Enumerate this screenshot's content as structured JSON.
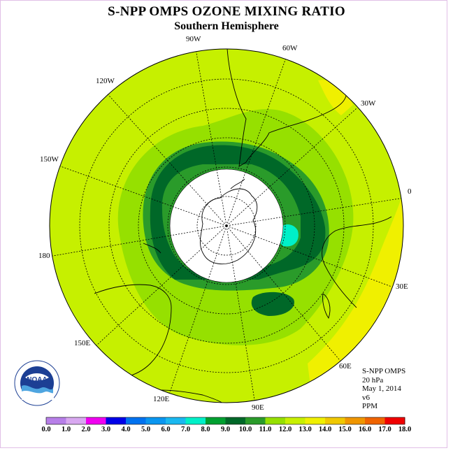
{
  "title": "S-NPP OMPS OZONE MIXING RATIO",
  "subtitle": "Southern Hemisphere",
  "info": {
    "instrument": "S-NPP OMPS",
    "level": "20 hPa",
    "date": "May 1, 2014",
    "version": "v6",
    "units": "PPM"
  },
  "longitude_labels": {
    "lon_90w": "90W",
    "lon_60w": "60W",
    "lon_120w": "120W",
    "lon_30w": "30W",
    "lon_150w": "150W",
    "lon_0": "0",
    "lon_180": "180",
    "lon_30e": "30E",
    "lon_150e": "150E",
    "lon_60e": "60E",
    "lon_120e": "120E",
    "lon_90e": "90E"
  },
  "logo": {
    "text": "NOAA",
    "ring_text": "NATIONAL OCEANIC AND ATMOSPHERIC ADMINISTRATION U.S. DEPARTMENT OF COMMERCE"
  },
  "colorbar": {
    "ticks": [
      "0.0",
      "1.0",
      "2.0",
      "3.0",
      "4.0",
      "5.0",
      "6.0",
      "7.0",
      "8.0",
      "9.0",
      "10.0",
      "11.0",
      "12.0",
      "13.0",
      "14.0",
      "15.0",
      "16.0",
      "17.0",
      "18.0"
    ],
    "colors": [
      "#b77fe8",
      "#d8a8f0",
      "#f000f0",
      "#0000e8",
      "#0072f0",
      "#0a96f0",
      "#1ab8f0",
      "#00f0c8",
      "#00a030",
      "#006828",
      "#2a9b2a",
      "#96e000",
      "#c8f000",
      "#f0f000",
      "#f0c800",
      "#f09600",
      "#f06400",
      "#f00000",
      "#8c5a3c"
    ]
  },
  "colors": {
    "background_field": "#c6f000",
    "polar_night": "#ffffff",
    "contour_11": "#96e000",
    "contour_10": "#2a9b2a",
    "contour_9": "#006828",
    "contour_8": "#00f0c8",
    "contour_13": "#f0f000",
    "frame": "#e1bfe6"
  }
}
